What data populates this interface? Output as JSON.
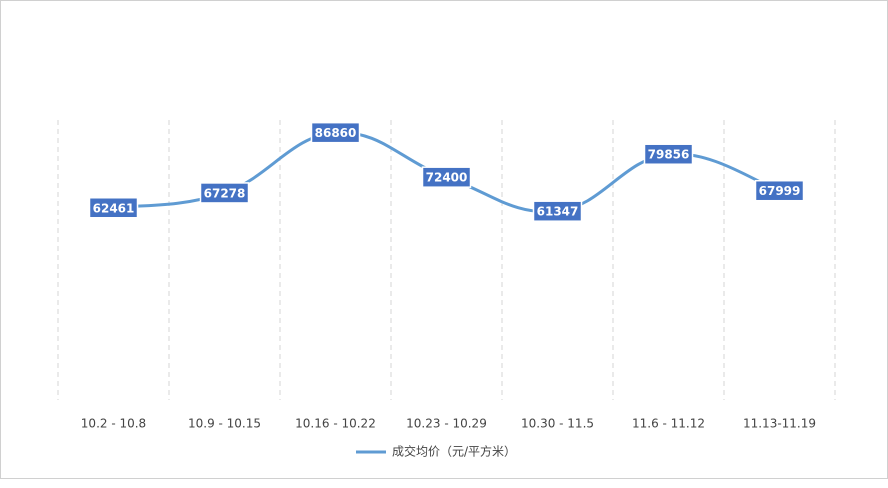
{
  "chart_data": {
    "type": "line",
    "categories": [
      "10.2 - 10.8",
      "10.9 - 10.15",
      "10.16 - 10.22",
      "10.23 - 10.29",
      "10.30 - 11.5",
      "11.6 - 11.12",
      "11.13-11.19"
    ],
    "series": [
      {
        "name": "成交均价（元/平方米）",
        "color": "#5f9bd3",
        "values": [
          62461,
          67278,
          86860,
          72400,
          61347,
          79856,
          67999
        ]
      }
    ],
    "label_color": "#4472c4",
    "ylim": [
      0,
      90000
    ],
    "legend": "bottom"
  }
}
